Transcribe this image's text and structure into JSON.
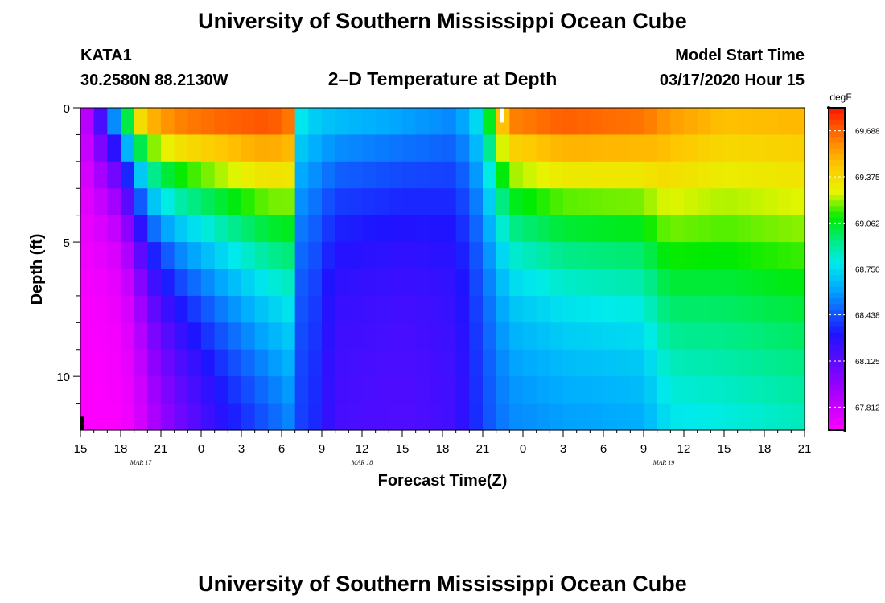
{
  "header": {
    "title": "University of Southern Mississippi Ocean Cube",
    "station_id": "KATA1",
    "station_coords": "30.2580N 88.2130W",
    "plot_title": "2–D Temperature at Depth",
    "model_start_label": "Model Start Time",
    "model_start_value": "03/17/2020 Hour 15"
  },
  "footer": {
    "title": "University of Southern Mississippi Ocean Cube"
  },
  "chart_data": {
    "type": "heatmap",
    "title": "2–D Temperature at Depth",
    "xlabel": "Forecast Time(Z)",
    "ylabel": "Depth (ft)",
    "x_unit": "hours since model start (03/17/2020 15Z)",
    "xlim": [
      0,
      54
    ],
    "ylim": [
      0,
      12
    ],
    "x_tick_values": [
      0,
      3,
      6,
      9,
      12,
      15,
      18,
      21,
      24,
      27,
      30,
      33,
      36,
      39,
      42,
      45,
      48,
      51,
      54
    ],
    "x_tick_labels": [
      "15",
      "18",
      "21",
      "0",
      "3",
      "6",
      "9",
      "12",
      "15",
      "18",
      "21",
      "0",
      "3",
      "6",
      "9",
      "12",
      "15",
      "18",
      "21"
    ],
    "date_labels": [
      {
        "x": 4.5,
        "text": "MAR 17"
      },
      {
        "x": 21,
        "text": "MAR 18"
      },
      {
        "x": 43.5,
        "text": "MAR 19"
      }
    ],
    "y_tick_values": [
      0,
      5,
      10
    ],
    "y_tick_labels": [
      "0",
      "5",
      "10"
    ],
    "y_minor_ticks": [
      1,
      2,
      3,
      4,
      6,
      7,
      8,
      9,
      11
    ],
    "depth_levels": 12,
    "colorbar": {
      "unit": "degF",
      "min": 67.656,
      "max": 69.844,
      "tick_values": [
        67.812,
        68.125,
        68.438,
        68.75,
        69.062,
        69.375,
        69.688
      ],
      "tick_labels": [
        "67.812",
        "68.125",
        "68.438",
        "68.750",
        "69.062",
        "69.375",
        "69.688"
      ]
    },
    "columns": [
      {
        "hour": 0,
        "surface": 67.7,
        "bottom": 67.66,
        "decay": 4
      },
      {
        "hour": 2,
        "surface": 68.45,
        "bottom": 67.66,
        "decay": 2.4
      },
      {
        "hour": 4,
        "surface": 69.45,
        "bottom": 67.7,
        "decay": 3.2
      },
      {
        "hour": 5,
        "surface": 69.62,
        "bottom": 67.76,
        "decay": 4.8
      },
      {
        "hour": 7,
        "surface": 69.74,
        "bottom": 67.9,
        "decay": 5.6
      },
      {
        "hour": 10,
        "surface": 69.78,
        "bottom": 68.1,
        "decay": 6.0
      },
      {
        "hour": 14,
        "surface": 69.8,
        "bottom": 68.25,
        "decay": 7.2
      },
      {
        "hour": 15.5,
        "surface": 69.72,
        "bottom": 68.33,
        "decay": 7.6
      },
      {
        "hour": 16,
        "surface": 68.88,
        "bottom": 68.38,
        "decay": 4
      },
      {
        "hour": 17,
        "surface": 68.76,
        "bottom": 68.4,
        "decay": 4
      },
      {
        "hour": 19,
        "surface": 68.72,
        "bottom": 68.18,
        "decay": 4
      },
      {
        "hour": 24,
        "surface": 68.65,
        "bottom": 68.15,
        "decay": 4
      },
      {
        "hour": 28,
        "surface": 68.58,
        "bottom": 68.2,
        "decay": 4
      },
      {
        "hour": 30,
        "surface": 68.85,
        "bottom": 68.4,
        "decay": 4
      },
      {
        "hour": 31,
        "surface": 69.4,
        "bottom": 68.46,
        "decay": 4
      },
      {
        "hour": 32,
        "surface": 69.72,
        "bottom": 68.5,
        "decay": 4.6
      },
      {
        "hour": 36,
        "surface": 69.78,
        "bottom": 68.5,
        "decay": 5.6
      },
      {
        "hour": 42,
        "surface": 69.72,
        "bottom": 68.5,
        "decay": 6.4
      },
      {
        "hour": 44,
        "surface": 69.6,
        "bottom": 68.52,
        "decay": 10
      },
      {
        "hour": 48,
        "surface": 69.5,
        "bottom": 68.55,
        "decay": 11
      },
      {
        "hour": 54,
        "surface": 69.52,
        "bottom": 68.58,
        "decay": 12
      }
    ],
    "markers": [
      {
        "hour": 31.5,
        "depth": 0.0,
        "depth_end": 0.55,
        "color": "#ffffff",
        "text": ""
      },
      {
        "hour": 0.0,
        "depth": 11.5,
        "depth_end": 12.0,
        "color": "#000000",
        "text": ""
      }
    ]
  }
}
